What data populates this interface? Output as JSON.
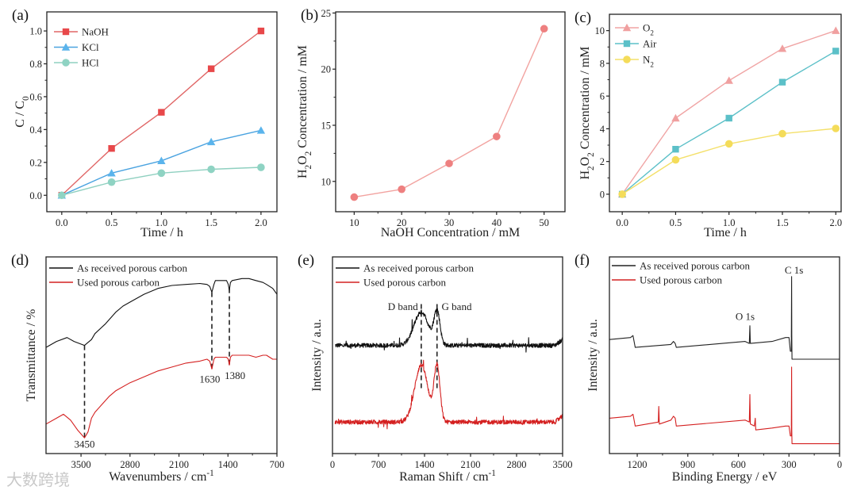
{
  "watermark": "大数跨境",
  "chart_data": [
    {
      "id": "a",
      "panel_label": "(a)",
      "type": "line",
      "xlabel": [
        {
          "t": "Time / h"
        }
      ],
      "ylabel": [
        {
          "t": "C / C"
        },
        {
          "t": "0",
          "sub": true
        }
      ],
      "xlim": [
        -0.15,
        2.16
      ],
      "ylim": [
        -0.1,
        1.116
      ],
      "xticks": [
        0,
        0.5,
        1.0,
        1.5,
        2.0
      ],
      "xtick_labels": [
        "0.0",
        "0.5",
        "1.0",
        "1.5",
        "2.0"
      ],
      "yticks": [
        0,
        0.2,
        0.4,
        0.6,
        0.8,
        1.0
      ],
      "ytick_labels": [
        "0.0",
        "0.2",
        "0.4",
        "0.6",
        "0.8",
        "1.0"
      ],
      "legend_position": "top-left",
      "series": [
        {
          "name": [
            {
              "t": "NaOH"
            }
          ],
          "marker": "square",
          "color": "#e8484a",
          "line_color": "#e06666",
          "x": [
            0,
            0.5,
            1.0,
            1.5,
            2.0
          ],
          "y": [
            0,
            0.285,
            0.505,
            0.77,
            1.0
          ]
        },
        {
          "name": [
            {
              "t": "KCl"
            }
          ],
          "marker": "triangle",
          "color": "#5ab4ec",
          "line_color": "#4aa3e0",
          "x": [
            0,
            0.5,
            1.0,
            1.5,
            2.0
          ],
          "y": [
            0,
            0.135,
            0.21,
            0.325,
            0.395
          ]
        },
        {
          "name": [
            {
              "t": "HCl"
            }
          ],
          "marker": "circle",
          "color": "#8fd3c3",
          "line_color": "#8fd0c0",
          "x": [
            0,
            0.5,
            1.0,
            1.5,
            2.0
          ],
          "y": [
            0,
            0.08,
            0.135,
            0.158,
            0.17
          ]
        }
      ]
    },
    {
      "id": "b",
      "panel_label": "(b)",
      "type": "line",
      "xlabel": [
        {
          "t": "NaOH Concentration / mM"
        }
      ],
      "ylabel": [
        {
          "t": "H"
        },
        {
          "t": "2",
          "sub": true
        },
        {
          "t": "O"
        },
        {
          "t": "2",
          "sub": true
        },
        {
          "t": " Concentration / mM"
        }
      ],
      "xlim": [
        6.1,
        54.4
      ],
      "ylim": [
        7.3,
        25.1
      ],
      "xticks": [
        10,
        20,
        30,
        40,
        50
      ],
      "xtick_labels": [
        "10",
        "20",
        "30",
        "40",
        "50"
      ],
      "yticks": [
        10,
        15,
        20,
        25
      ],
      "ytick_labels": [
        "10",
        "15",
        "20",
        "25"
      ],
      "series": [
        {
          "name": [],
          "marker": "circle",
          "color": "#ee8080",
          "line_color": "#f2a3a0",
          "x": [
            10,
            20,
            30,
            40,
            50
          ],
          "y": [
            8.6,
            9.3,
            11.6,
            14.0,
            23.6
          ]
        }
      ]
    },
    {
      "id": "c",
      "panel_label": "(c)",
      "type": "line",
      "xlabel": [
        {
          "t": "Time / h"
        }
      ],
      "ylabel": [
        {
          "t": "H"
        },
        {
          "t": "2",
          "sub": true
        },
        {
          "t": "O"
        },
        {
          "t": "2",
          "sub": true
        },
        {
          "t": " Concentration / mM"
        }
      ],
      "xlim": [
        -0.12,
        2.05
      ],
      "ylim": [
        -1.07,
        11.0
      ],
      "xticks": [
        0,
        0.5,
        1.0,
        1.5,
        2.0
      ],
      "xtick_labels": [
        "0.0",
        "0.5",
        "1.0",
        "1.5",
        "2.0"
      ],
      "yticks": [
        0,
        2,
        4,
        6,
        8,
        10
      ],
      "ytick_labels": [
        "0",
        "2",
        "4",
        "6",
        "8",
        "10"
      ],
      "legend_position": "top-left",
      "series": [
        {
          "name": [
            {
              "t": "O"
            },
            {
              "t": "2",
              "sub": true
            }
          ],
          "marker": "triangle",
          "color": "#f0a0a0",
          "line_color": "#f0a4a4",
          "x": [
            0,
            0.5,
            1.0,
            1.5,
            2.0
          ],
          "y": [
            0,
            4.65,
            6.95,
            8.9,
            10.0
          ]
        },
        {
          "name": [
            {
              "t": "Air"
            }
          ],
          "marker": "square",
          "color": "#5cc0c8",
          "line_color": "#5cc0c8",
          "x": [
            0,
            0.5,
            1.0,
            1.5,
            2.0
          ],
          "y": [
            0,
            2.75,
            4.65,
            6.85,
            8.75
          ]
        },
        {
          "name": [
            {
              "t": "N"
            },
            {
              "t": "2",
              "sub": true
            }
          ],
          "marker": "circle",
          "color": "#f4dc5a",
          "line_color": "#f4e06a",
          "x": [
            0,
            0.5,
            1.0,
            1.5,
            2.0
          ],
          "y": [
            0,
            2.1,
            3.08,
            3.7,
            4.02
          ]
        }
      ]
    },
    {
      "id": "d",
      "panel_label": "(d)",
      "type": "line",
      "xlabel": [
        {
          "t": "Wavenumbers / cm"
        },
        {
          "t": "-1",
          "sup": true
        }
      ],
      "ylabel": [
        {
          "t": "Transmittance / %"
        }
      ],
      "xlim": [
        4000,
        700
      ],
      "ylim": [
        0,
        100
      ],
      "xticks": [
        3500,
        2800,
        2100,
        1400,
        700
      ],
      "xtick_labels": [
        "3500",
        "2800",
        "2100",
        "1400",
        "700"
      ],
      "legend_position": "top-left",
      "series": [
        {
          "name": [
            {
              "t": "As received porous carbon"
            }
          ],
          "color": "#111111",
          "x": [
            4000,
            3850,
            3700,
            3600,
            3450,
            3350,
            3300,
            3150,
            3000,
            2900,
            2800,
            2600,
            2400,
            2200,
            2000,
            1800,
            1700,
            1660,
            1630,
            1600,
            1580,
            1420,
            1395,
            1380,
            1365,
            1340,
            1200,
            1100,
            1000,
            900,
            850,
            760,
            700
          ],
          "y": [
            54,
            57,
            59,
            57,
            55,
            58,
            61,
            66,
            72,
            75,
            77,
            81,
            84,
            85.5,
            86,
            86.5,
            86,
            85,
            82,
            86,
            88,
            88,
            86,
            83,
            87,
            88,
            89,
            89,
            88,
            87,
            86,
            84,
            81
          ]
        },
        {
          "name": [
            {
              "t": "Used porous carbon"
            }
          ],
          "color": "#d42020",
          "x": [
            4000,
            3850,
            3750,
            3650,
            3550,
            3450,
            3400,
            3350,
            3300,
            3200,
            3100,
            3000,
            2800,
            2600,
            2400,
            2200,
            2000,
            1800,
            1700,
            1660,
            1630,
            1600,
            1580,
            1420,
            1395,
            1380,
            1365,
            1340,
            1200,
            1100,
            1000,
            900,
            850,
            760,
            700
          ],
          "y": [
            15,
            18,
            20,
            17,
            12,
            8,
            11,
            18,
            21,
            25,
            29,
            32,
            36,
            39,
            42,
            44,
            46,
            47,
            48,
            47,
            43,
            48,
            49,
            49,
            48,
            45,
            49,
            50,
            50,
            50,
            49,
            50,
            50,
            48,
            48
          ]
        }
      ],
      "annotations": [
        {
          "text": "3450",
          "x": 3450,
          "y": 3,
          "align": "middle"
        },
        {
          "text": "1630",
          "x": 1660,
          "y": 36,
          "align": "middle"
        },
        {
          "text": "1380",
          "x": 1300,
          "y": 38,
          "align": "middle"
        }
      ],
      "droplines": [
        {
          "x": 3450,
          "y1": 55,
          "y2": 8
        },
        {
          "x": 1630,
          "y1": 82,
          "y2": 43
        },
        {
          "x": 1380,
          "y1": 84,
          "y2": 45
        }
      ]
    },
    {
      "id": "e",
      "panel_label": "(e)",
      "type": "line",
      "xlabel": [
        {
          "t": "Raman Shift / cm"
        },
        {
          "t": "-1",
          "sup": true
        }
      ],
      "ylabel": [
        {
          "t": "Intensity / a.u."
        }
      ],
      "xlim": [
        0,
        3500
      ],
      "ylim": [
        0,
        100
      ],
      "xticks": [
        0,
        700,
        1400,
        2100,
        2800,
        3500
      ],
      "xtick_labels": [
        "0",
        "700",
        "1400",
        "2100",
        "2800",
        "3500"
      ],
      "legend_position": "top-left",
      "series": [
        {
          "name": [
            {
              "t": "As received porous carbon"
            }
          ],
          "color": "#111111",
          "baseline": 55,
          "peaks": [
            {
              "center": 1350,
              "height": 17,
              "width": 110
            },
            {
              "center": 1590,
              "height": 17,
              "width": 45
            }
          ],
          "x_range": [
            40,
            3500
          ]
        },
        {
          "name": [
            {
              "t": "Used porous carbon"
            }
          ],
          "color": "#d42020",
          "baseline": 16,
          "peaks": [
            {
              "center": 1350,
              "height": 29,
              "width": 100
            },
            {
              "center": 1590,
              "height": 28,
              "width": 45
            }
          ],
          "x_range": [
            40,
            3500
          ]
        }
      ],
      "annotations": [
        {
          "text": "D band",
          "x": 1300,
          "y": 73,
          "align": "end"
        },
        {
          "text": "G band",
          "x": 1660,
          "y": 73,
          "align": "start"
        }
      ],
      "droplines": [
        {
          "x": 1350,
          "y1": 76,
          "y2": 33
        },
        {
          "x": 1590,
          "y1": 76,
          "y2": 33
        }
      ]
    },
    {
      "id": "f",
      "panel_label": "(f)",
      "type": "line",
      "xlabel": [
        {
          "t": "Binding Energy / eV"
        }
      ],
      "ylabel": [
        {
          "t": "Intensity / a.u."
        }
      ],
      "xlim": [
        1365,
        0
      ],
      "ylim": [
        0,
        100
      ],
      "xticks": [
        1200,
        900,
        600,
        300,
        0
      ],
      "xtick_labels": [
        "1200",
        "900",
        "600",
        "300",
        "0"
      ],
      "legend_position": "top-left",
      "series": [
        {
          "name": [
            {
              "t": "As received porous carbon"
            }
          ],
          "color": "#222222",
          "x": [
            1365,
            1240,
            1225,
            1212,
            1000,
            985,
            975,
            968,
            560,
            535,
            532,
            529,
            400,
            320,
            300,
            292,
            286,
            284.5,
            283.5,
            282,
            0
          ],
          "y": [
            58,
            59,
            60,
            54,
            55.5,
            57,
            56,
            54,
            57,
            56,
            65,
            56,
            57,
            59,
            59,
            52,
            52,
            90,
            60,
            48,
            48
          ]
        },
        {
          "name": [
            {
              "t": "Used porous carbon"
            }
          ],
          "color": "#d42020",
          "x": [
            1365,
            1240,
            1225,
            1212,
            1075,
            1072,
            1069,
            1000,
            985,
            975,
            968,
            560,
            535,
            532,
            529,
            505,
            500,
            497,
            400,
            320,
            300,
            292,
            286,
            284.5,
            283.5,
            282,
            0
          ],
          "y": [
            18,
            19,
            20,
            14,
            16,
            24,
            15,
            17,
            19,
            18,
            14,
            17,
            16,
            30,
            15,
            14,
            18,
            12,
            13,
            14,
            14,
            9,
            9,
            44,
            12,
            5,
            5
          ]
        }
      ],
      "annotations": [
        {
          "text": "O 1s",
          "x": 560,
          "y": 68,
          "align": "middle"
        },
        {
          "text": "C 1s",
          "x": 270,
          "y": 91.5,
          "align": "middle"
        }
      ]
    }
  ]
}
